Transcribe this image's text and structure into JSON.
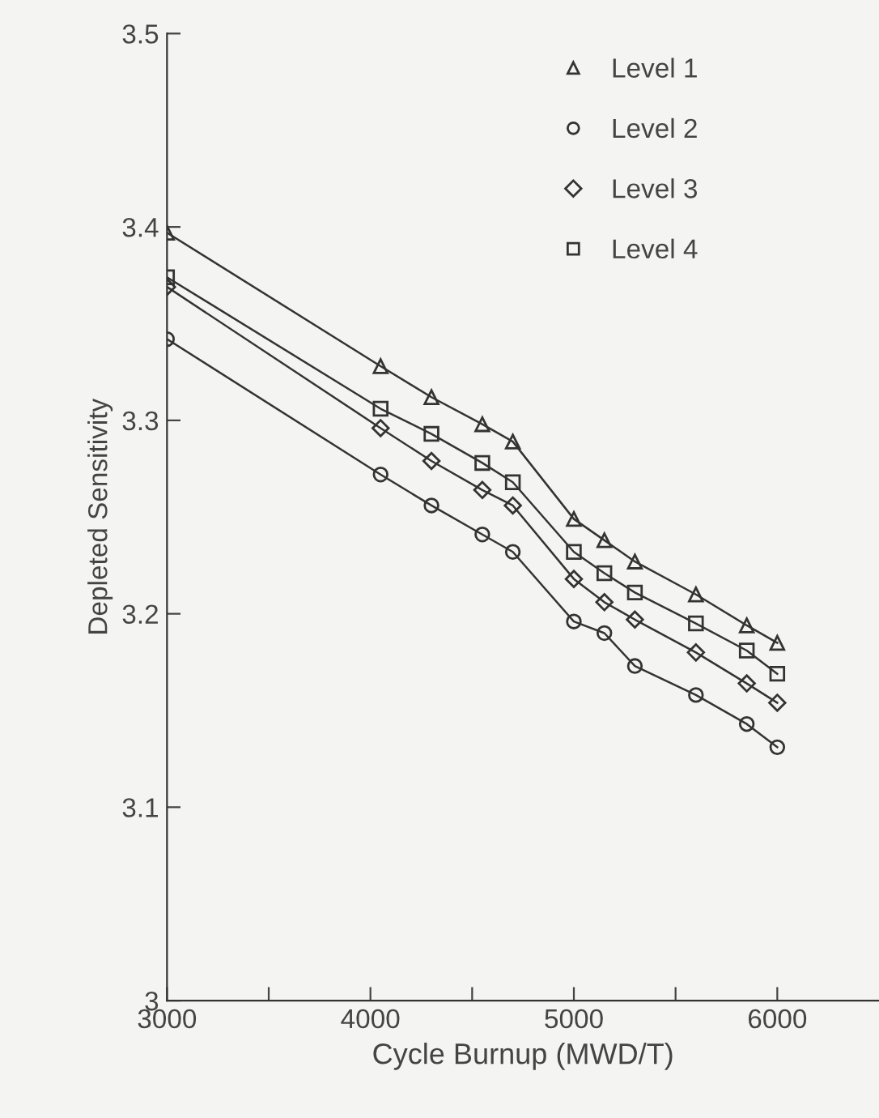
{
  "chart_data": {
    "type": "line",
    "xlabel": "Cycle Burnup (MWD/T)",
    "ylabel": "Depleted Sensitivity",
    "x": [
      3000,
      4050,
      4300,
      4550,
      4700,
      5000,
      5150,
      5300,
      5600,
      5850,
      6000
    ],
    "xlim": [
      3000,
      6500
    ],
    "xticks": [
      3000,
      {
        "value": 3500,
        "label": null
      },
      4000,
      {
        "value": 4500,
        "label": null
      },
      5000,
      {
        "value": 5500,
        "label": null
      },
      6000
    ],
    "ylim": [
      3.0,
      3.5
    ],
    "yticks": [
      {
        "value": 3.0,
        "label": "3"
      },
      3.1,
      3.2,
      3.3,
      3.4,
      3.5
    ],
    "grid": false,
    "legend": "top right",
    "line_style": "solid",
    "series": [
      {
        "name": "Level 1",
        "color": "#333333",
        "marker": "triangle",
        "values": [
          3.397,
          3.328,
          3.312,
          3.298,
          3.289,
          3.249,
          3.238,
          3.227,
          3.21,
          3.194,
          3.185
        ]
      },
      {
        "name": "Level 2",
        "color": "#333333",
        "marker": "circle",
        "values": [
          3.342,
          3.272,
          3.256,
          3.241,
          3.232,
          3.196,
          3.19,
          3.173,
          3.158,
          3.143,
          3.131
        ]
      },
      {
        "name": "Level 3",
        "color": "#333333",
        "marker": "diamond",
        "values": [
          3.369,
          3.296,
          3.279,
          3.264,
          3.256,
          3.218,
          3.206,
          3.197,
          3.18,
          3.164,
          3.154
        ]
      },
      {
        "name": "Level 4",
        "color": "#333333",
        "marker": "square",
        "values": [
          3.374,
          3.306,
          3.293,
          3.278,
          3.268,
          3.232,
          3.221,
          3.211,
          3.195,
          3.181,
          3.169
        ]
      }
    ]
  }
}
